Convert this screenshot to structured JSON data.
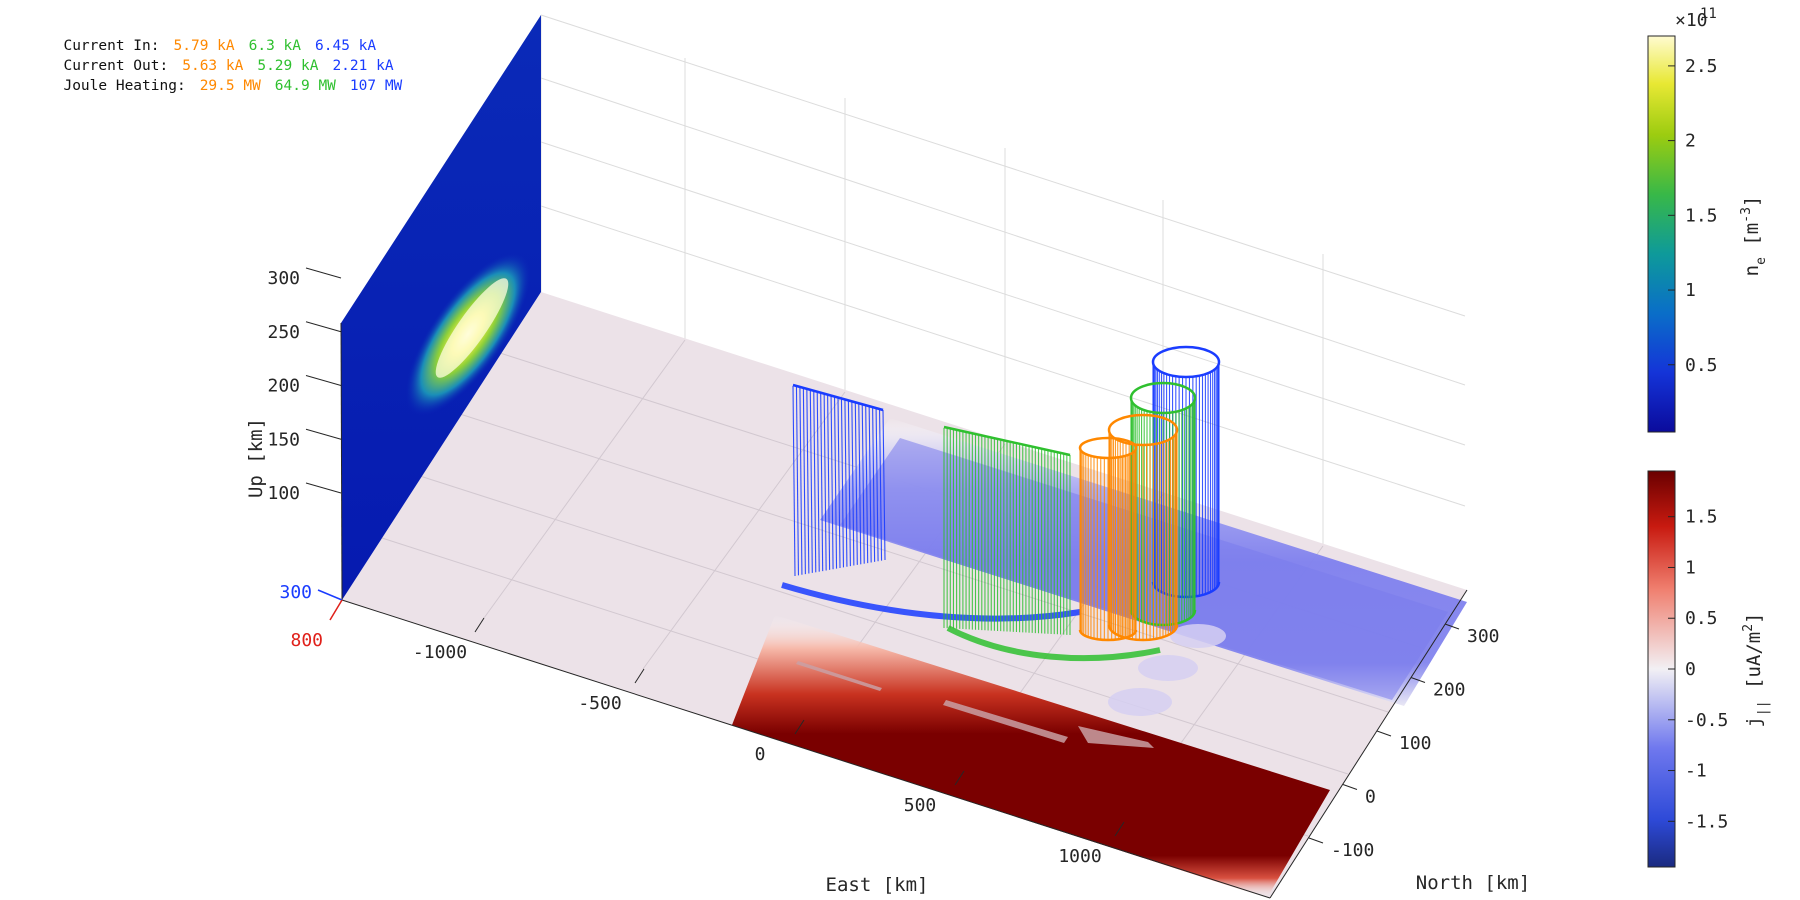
{
  "annotations": {
    "current_in": {
      "label": "Current In:",
      "values": [
        "5.79 kA",
        "6.3 kA",
        "6.45 kA"
      ]
    },
    "current_out": {
      "label": "Current Out:",
      "values": [
        "5.63 kA",
        "5.29 kA",
        "2.21 kA"
      ]
    },
    "joule_heating": {
      "label": "Joule Heating:",
      "values": [
        "29.5 MW",
        "64.9 MW",
        "107 MW"
      ]
    }
  },
  "colors": {
    "orange": "#ff8800",
    "green": "#2fc02f",
    "blue": "#1a3cff",
    "red": "#e0201a"
  },
  "chart_data": {
    "type": "3d-surface",
    "xlabel": "East [km]",
    "ylabel": "North [km]",
    "zlabel": "Up [km]",
    "x_ticks": [
      -1000,
      -500,
      0,
      500,
      1000
    ],
    "y_ticks": [
      -100,
      0,
      100,
      200,
      300
    ],
    "z_ticks": [
      100,
      150,
      200,
      250,
      300
    ],
    "corner_labels": {
      "blue": "300",
      "red": "800"
    },
    "series": [
      {
        "color": "orange",
        "current_in_kA": 5.79,
        "current_out_kA": 5.63,
        "joule_heating_MW": 29.5
      },
      {
        "color": "green",
        "current_in_kA": 6.3,
        "current_out_kA": 5.29,
        "joule_heating_MW": 64.9
      },
      {
        "color": "blue",
        "current_in_kA": 6.45,
        "current_out_kA": 2.21,
        "joule_heating_MW": 107
      }
    ],
    "colorbar_ne": {
      "label": "n_e [m^-3]",
      "exponent": "×10",
      "exponent_power": "11",
      "ticks": [
        "0.5",
        "1",
        "1.5",
        "2",
        "2.5"
      ],
      "tick_values": [
        0.5,
        1,
        1.5,
        2,
        2.5
      ],
      "range": [
        0.05,
        2.7
      ]
    },
    "colorbar_j": {
      "label": "j_|| [uA/m^2]",
      "ticks": [
        "-1.5",
        "-1",
        "-0.5",
        "0",
        "0.5",
        "1",
        "1.5"
      ],
      "tick_values": [
        -1.5,
        -1,
        -0.5,
        0,
        0.5,
        1,
        1.5
      ],
      "range": [
        -1.95,
        1.95
      ]
    }
  }
}
